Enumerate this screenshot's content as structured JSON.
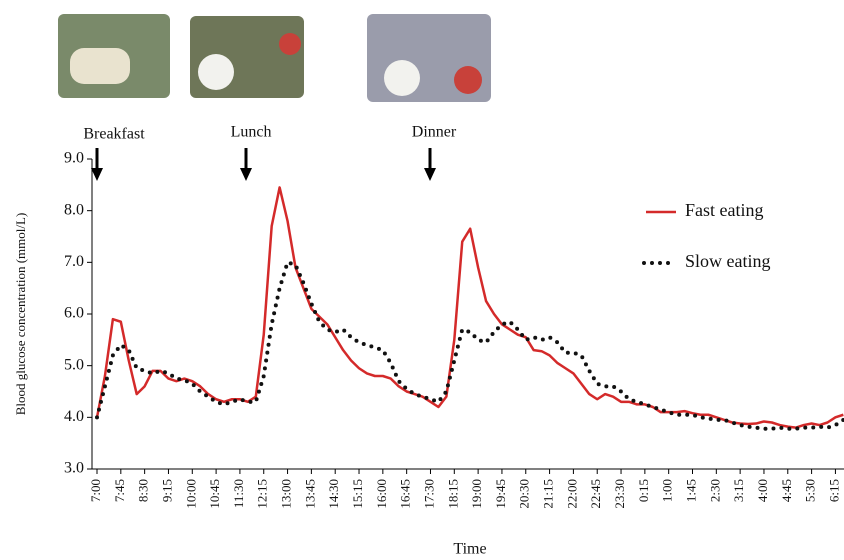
{
  "chart_data": {
    "type": "line",
    "x_label": "Time",
    "y_label": "Blood glucose concentration (mmol/L)",
    "annotations": [
      "Breakfast",
      "Lunch",
      "Dinner"
    ],
    "categories": [
      "7:00",
      null,
      null,
      "7:45",
      null,
      null,
      "8:30",
      null,
      null,
      "9:15",
      null,
      null,
      "10:00",
      null,
      null,
      "10:45",
      null,
      null,
      "11:30",
      null,
      null,
      "12:15",
      null,
      null,
      "13:00",
      null,
      null,
      "13:45",
      null,
      null,
      "14:30",
      null,
      null,
      "15:15",
      null,
      null,
      "16:00",
      null,
      null,
      "16:45",
      null,
      null,
      "17:30",
      null,
      null,
      "18:15",
      null,
      null,
      "19:00",
      null,
      null,
      "19:45",
      null,
      null,
      "20:30",
      null,
      null,
      "21:15",
      null,
      null,
      "22:00",
      null,
      null,
      "22:45",
      null,
      null,
      "23:30",
      null,
      null,
      "0:15",
      null,
      null,
      "1:00",
      null,
      null,
      "1:45",
      null,
      null,
      "2:30",
      null,
      null,
      "3:15",
      null,
      null,
      "4:00",
      null,
      null,
      "4:45",
      null,
      null,
      "5:30",
      null,
      null,
      "6:15",
      null
    ],
    "series": [
      {
        "name": "Fast eating",
        "color": "#d42a2a",
        "style": "solid",
        "values": [
          4.0,
          4.8,
          5.9,
          5.85,
          5.1,
          4.45,
          4.6,
          4.9,
          4.9,
          4.75,
          4.7,
          4.75,
          4.7,
          4.6,
          4.45,
          4.35,
          4.3,
          4.35,
          4.35,
          4.3,
          4.4,
          5.6,
          7.7,
          8.45,
          7.8,
          6.9,
          6.5,
          6.1,
          5.95,
          5.8,
          5.55,
          5.3,
          5.1,
          4.95,
          4.85,
          4.8,
          4.8,
          4.75,
          4.6,
          4.5,
          4.45,
          4.4,
          4.3,
          4.2,
          4.4,
          5.5,
          7.4,
          7.65,
          6.9,
          6.25,
          6.0,
          5.8,
          5.7,
          5.6,
          5.55,
          5.3,
          5.28,
          5.2,
          5.05,
          4.95,
          4.85,
          4.65,
          4.45,
          4.35,
          4.45,
          4.4,
          4.3,
          4.3,
          4.25,
          4.25,
          4.2,
          4.1,
          4.1,
          4.1,
          4.12,
          4.08,
          4.05,
          4.05,
          4.0,
          3.95,
          3.9,
          3.88,
          3.87,
          3.88,
          3.92,
          3.9,
          3.85,
          3.82,
          3.8,
          3.85,
          3.88,
          3.85,
          3.9,
          4.0,
          4.05
        ]
      },
      {
        "name": "Slow eating",
        "color": "#111111",
        "style": "dotted",
        "values": [
          4.0,
          4.6,
          5.2,
          5.4,
          5.3,
          4.95,
          4.9,
          4.85,
          4.9,
          4.85,
          4.75,
          4.72,
          4.65,
          4.5,
          4.4,
          4.3,
          4.25,
          4.3,
          4.35,
          4.3,
          4.3,
          4.8,
          5.8,
          6.5,
          7.0,
          6.95,
          6.6,
          6.2,
          5.85,
          5.7,
          5.65,
          5.7,
          5.55,
          5.45,
          5.4,
          5.35,
          5.3,
          5.05,
          4.7,
          4.55,
          4.45,
          4.4,
          4.35,
          4.3,
          4.5,
          5.1,
          5.7,
          5.65,
          5.5,
          5.45,
          5.65,
          5.8,
          5.85,
          5.7,
          5.5,
          5.55,
          5.5,
          5.55,
          5.45,
          5.25,
          5.25,
          5.2,
          4.9,
          4.65,
          4.6,
          4.6,
          4.5,
          4.35,
          4.3,
          4.25,
          4.2,
          4.15,
          4.1,
          4.05,
          4.05,
          4.05,
          4.0,
          3.98,
          3.95,
          3.95,
          3.9,
          3.85,
          3.82,
          3.8,
          3.78,
          3.78,
          3.8,
          3.78,
          3.78,
          3.8,
          3.8,
          3.82,
          3.8,
          3.85,
          3.95
        ]
      }
    ],
    "ylim": [
      3,
      9
    ],
    "yticks": [
      {
        "value": 3,
        "label": "3.0"
      },
      {
        "value": 4,
        "label": "4.0"
      },
      {
        "value": 5,
        "label": "5.0"
      },
      {
        "value": 6,
        "label": "6.0"
      },
      {
        "value": 7,
        "label": "7.0"
      },
      {
        "value": 8,
        "label": "8.0"
      },
      {
        "value": 9,
        "label": "9.0"
      }
    ],
    "legend": "upper-right"
  }
}
